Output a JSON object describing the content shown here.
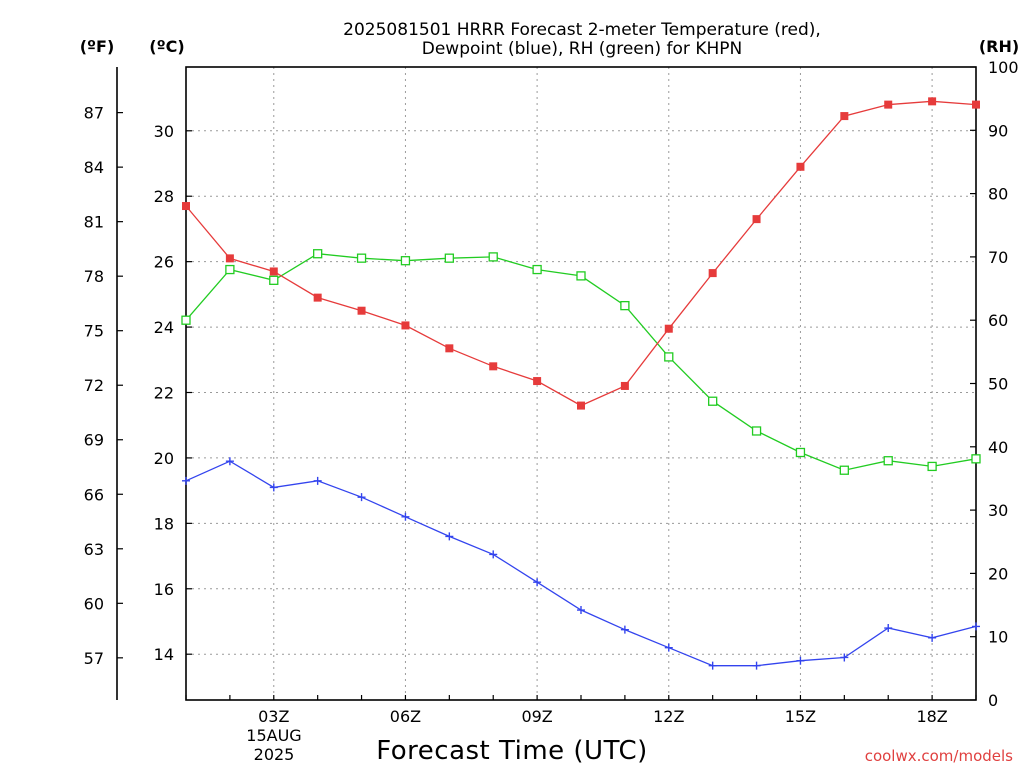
{
  "chart_data": {
    "type": "line",
    "title": [
      "2025081501 HRRR Forecast 2-meter Temperature (red),",
      "Dewpoint (blue), RH (green) for KHPN"
    ],
    "xlabel": "Forecast Time (UTC)",
    "date_label": [
      "15AUG",
      "2025"
    ],
    "units": {
      "fahrenheit": "(ºF)",
      "celsius": "(ºC)",
      "rh": "(RH)"
    },
    "credit": "coolwx.com/models",
    "x_hours": [
      1,
      2,
      3,
      4,
      5,
      6,
      7,
      8,
      9,
      10,
      11,
      12,
      13,
      14,
      15,
      16,
      17,
      18,
      19
    ],
    "x_ticks": [
      {
        "hour": 3,
        "label": "03Z"
      },
      {
        "hour": 6,
        "label": "06Z"
      },
      {
        "hour": 9,
        "label": "09Z"
      },
      {
        "hour": 12,
        "label": "12Z"
      },
      {
        "hour": 15,
        "label": "15Z"
      },
      {
        "hour": 18,
        "label": "18Z"
      }
    ],
    "xlim": [
      1,
      19
    ],
    "celsius_range": [
      12.6,
      31.95
    ],
    "celsius_ticks": [
      14,
      16,
      18,
      20,
      22,
      24,
      26,
      28,
      30
    ],
    "fahrenheit_ticks": [
      57,
      60,
      63,
      66,
      69,
      72,
      75,
      78,
      81,
      84,
      87
    ],
    "rh_range": [
      0,
      100
    ],
    "rh_ticks": [
      0,
      10,
      20,
      30,
      40,
      50,
      60,
      70,
      80,
      90,
      100
    ],
    "grid": true,
    "series": [
      {
        "name": "Temperature",
        "axis": "celsius",
        "marker": "filled-square",
        "color": "#e63b3b",
        "values": [
          27.7,
          26.1,
          25.7,
          24.9,
          24.5,
          24.05,
          23.35,
          22.8,
          22.35,
          21.6,
          22.2,
          23.95,
          25.65,
          27.3,
          28.9,
          30.45,
          30.8,
          30.9,
          30.8
        ]
      },
      {
        "name": "Dewpoint",
        "axis": "celsius",
        "marker": "plus",
        "color": "#3344ee",
        "values": [
          19.3,
          19.9,
          19.1,
          19.3,
          18.8,
          18.2,
          17.6,
          17.05,
          16.2,
          15.35,
          14.75,
          14.2,
          13.65,
          13.65,
          13.8,
          13.9,
          14.8,
          14.5,
          14.85
        ]
      },
      {
        "name": "RH",
        "axis": "rh",
        "marker": "open-square",
        "color": "#22cc22",
        "values": [
          60,
          68,
          66.3,
          70.5,
          69.8,
          69.4,
          69.8,
          70,
          68,
          67,
          62.3,
          54.2,
          47.2,
          42.5,
          39.1,
          36.3,
          37.8,
          36.9,
          38.1
        ]
      }
    ]
  }
}
